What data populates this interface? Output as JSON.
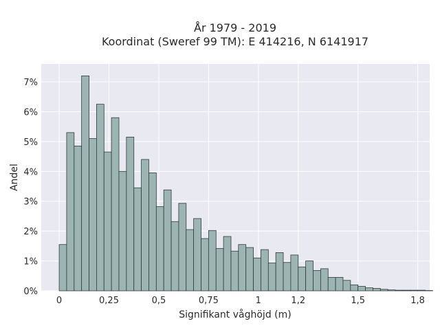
{
  "chart_data": {
    "type": "bar",
    "title_lines": [
      "År 1979 - 2019",
      "Koordinat (Sweref 99 TM): E 414216, N 6141917"
    ],
    "xlabel": "Signifikant våghöjd (m)",
    "ylabel": "Andel",
    "xlim": [
      -0.09,
      1.86
    ],
    "ylim": [
      0,
      7.6
    ],
    "x_ticks": [
      0,
      0.25,
      0.5,
      0.75,
      1,
      1.2,
      1.5,
      1.8
    ],
    "x_tick_labels": [
      "0",
      "0,25",
      "0,5",
      "0,75",
      "1",
      "1,2",
      "1,5",
      "1,8"
    ],
    "y_ticks": [
      0,
      1,
      2,
      3,
      4,
      5,
      6,
      7
    ],
    "y_tick_labels": [
      "0%",
      "1%",
      "2%",
      "3%",
      "4%",
      "5%",
      "6%",
      "7%"
    ],
    "bin_width": 0.0375,
    "bin_start": 0,
    "values": [
      1.55,
      5.3,
      4.85,
      7.2,
      5.1,
      6.25,
      4.65,
      5.8,
      4.0,
      5.15,
      3.45,
      4.4,
      3.95,
      2.82,
      3.38,
      2.32,
      2.93,
      2.05,
      2.42,
      1.75,
      2.02,
      1.42,
      1.82,
      1.33,
      1.55,
      1.45,
      1.1,
      1.38,
      0.93,
      1.28,
      0.95,
      1.2,
      0.8,
      1.0,
      0.68,
      0.74,
      0.45,
      0.45,
      0.35,
      0.2,
      0.15,
      0.1,
      0.08,
      0.05,
      0.03,
      0.02,
      0.02,
      0.02,
      0.02,
      0.01
    ],
    "bar_color": "#9db5b2",
    "bar_edge": "#2f3a39",
    "plot_bg": "#e9e9f1",
    "grid": true,
    "grid_color": "#ffffff"
  }
}
